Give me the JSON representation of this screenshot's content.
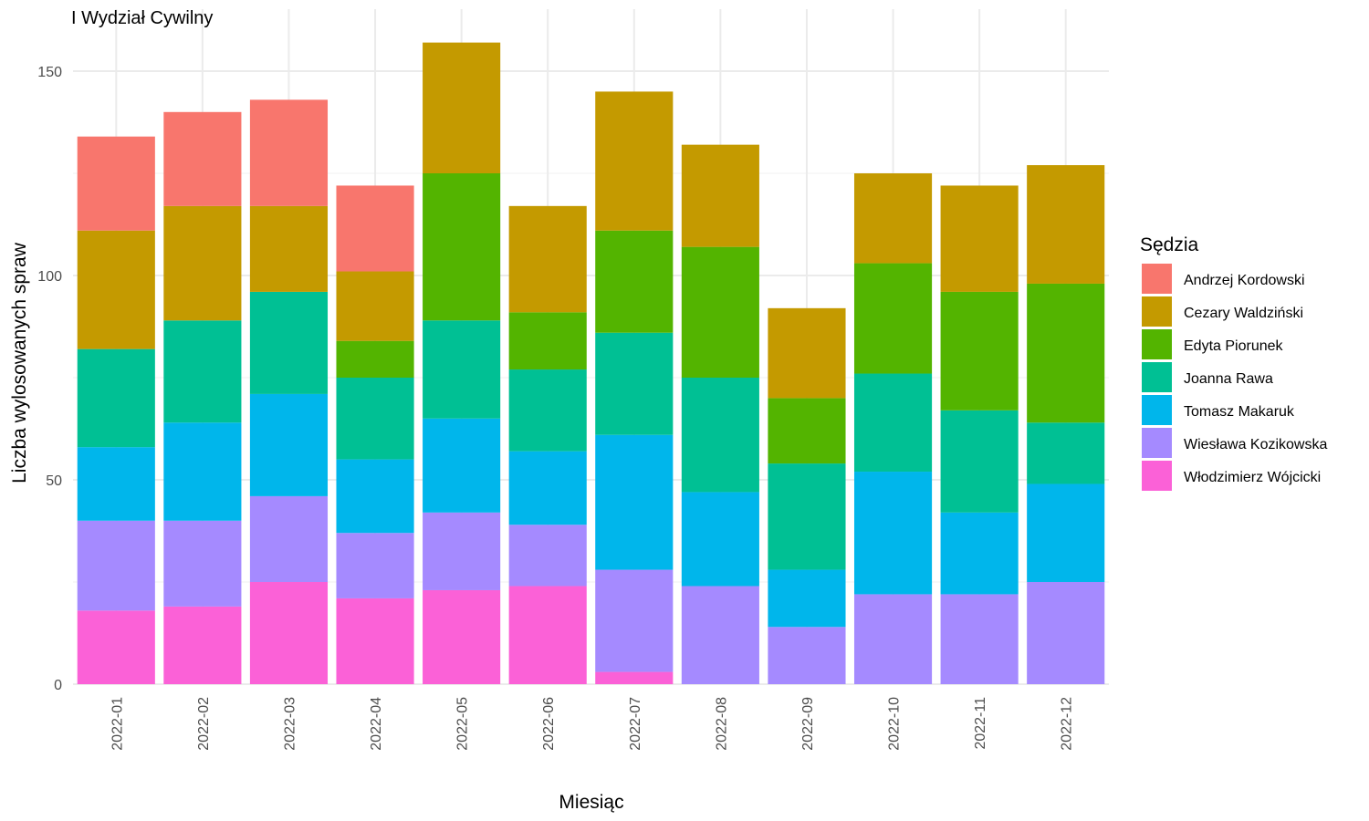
{
  "chart_data": {
    "type": "bar",
    "stacked": true,
    "title": "I Wydział Cywilny",
    "xlabel": "Miesiąc",
    "ylabel": "Liczba wylosowanych spraw",
    "ylim": [
      0,
      160
    ],
    "yticks": [
      0,
      50,
      100,
      150
    ],
    "grid": true,
    "legend_position": "right",
    "legend_title": "Sędzia",
    "categories": [
      "2022-01",
      "2022-02",
      "2022-03",
      "2022-04",
      "2022-05",
      "2022-06",
      "2022-07",
      "2022-08",
      "2022-09",
      "2022-10",
      "2022-11",
      "2022-12"
    ],
    "series": [
      {
        "name": "Andrzej Kordowski",
        "color": "#F8766D",
        "values": [
          23,
          23,
          26,
          21,
          0,
          0,
          0,
          0,
          0,
          0,
          0,
          0
        ]
      },
      {
        "name": "Cezary Waldziński",
        "color": "#C49A00",
        "values": [
          29,
          28,
          21,
          17,
          32,
          26,
          34,
          25,
          22,
          22,
          26,
          29
        ]
      },
      {
        "name": "Edyta Piorunek",
        "color": "#53B400",
        "values": [
          0,
          0,
          0,
          9,
          36,
          14,
          25,
          32,
          16,
          27,
          29,
          34
        ]
      },
      {
        "name": "Joanna Rawa",
        "color": "#00C094",
        "values": [
          24,
          25,
          25,
          20,
          24,
          20,
          25,
          28,
          26,
          24,
          25,
          15
        ]
      },
      {
        "name": "Tomasz Makaruk",
        "color": "#00B6EB",
        "values": [
          18,
          24,
          25,
          18,
          23,
          18,
          33,
          23,
          14,
          30,
          20,
          24
        ]
      },
      {
        "name": "Wiesława Kozikowska",
        "color": "#A58AFF",
        "values": [
          22,
          21,
          21,
          16,
          19,
          15,
          25,
          24,
          14,
          22,
          22,
          25
        ]
      },
      {
        "name": "Włodzimierz Wójcicki",
        "color": "#FB61D7",
        "values": [
          18,
          19,
          25,
          21,
          23,
          24,
          3,
          0,
          0,
          0,
          0,
          0
        ]
      }
    ]
  }
}
